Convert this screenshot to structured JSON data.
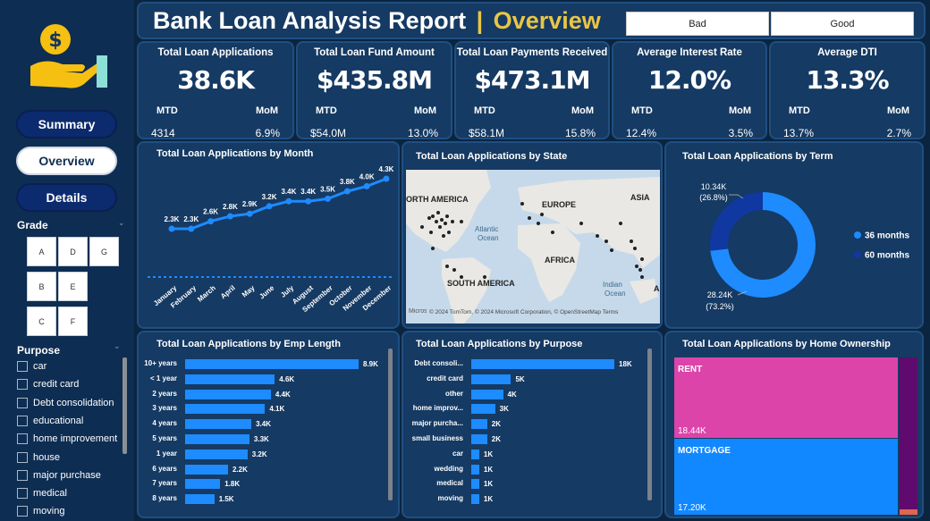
{
  "header": {
    "title_main": "Bank Loan Analysis Report",
    "title_sep": "|",
    "title_page": "Overview"
  },
  "filters": {
    "bad_label": "Bad",
    "good_label": "Good"
  },
  "nav": {
    "summary": "Summary",
    "overview": "Overview",
    "details": "Details"
  },
  "grade": {
    "label": "Grade",
    "items": [
      "A",
      "D",
      "G",
      "B",
      "E",
      "C",
      "F"
    ]
  },
  "purpose_filter": {
    "label": "Purpose",
    "items": [
      "car",
      "credit card",
      "Debt consolidation",
      "educational",
      "home improvement",
      "house",
      "major purchase",
      "medical",
      "moving"
    ]
  },
  "kpis": [
    {
      "title": "Total Loan Applications",
      "value": "38.6K",
      "mtd_label": "MTD",
      "mom_label": "MoM",
      "mtd": "4314",
      "mom": "6.9%"
    },
    {
      "title": "Total Loan Fund Amount",
      "value": "$435.8M",
      "mtd_label": "MTD",
      "mom_label": "MoM",
      "mtd": "$54.0M",
      "mom": "13.0%"
    },
    {
      "title": "Total Loan Payments Received",
      "value": "$473.1M",
      "mtd_label": "MTD",
      "mom_label": "MoM",
      "mtd": "$58.1M",
      "mom": "15.8%"
    },
    {
      "title": "Average Interest Rate",
      "value": "12.0%",
      "mtd_label": "MTD",
      "mom_label": "MoM",
      "mtd": "12.4%",
      "mom": "3.5%"
    },
    {
      "title": "Average DTI",
      "value": "13.3%",
      "mtd_label": "MTD",
      "mom_label": "MoM",
      "mtd": "13.7%",
      "mom": "2.7%"
    }
  ],
  "map": {
    "title": "Total Loan Applications by State",
    "labels": {
      "na": "ORTH AMERICA",
      "eu": "EUROPE",
      "asia": "ASIA",
      "atl1": "Atlantic",
      "atl2": "Ocean",
      "africa": "AFRICA",
      "sa": "SOUTH AMERICA",
      "ind1": "Indian",
      "ind2": "Ocean",
      "edge": "A"
    },
    "attribution": "© 2024 TomTom, © 2024 Microsoft Corporation, © OpenStreetMap  Terms",
    "logo": "Microsoft Bing"
  },
  "colors": {
    "accent": "#1e8bff",
    "gold": "#e9c545",
    "rent": "#dd44aa",
    "mortgage": "#1188ff",
    "own": "#5e0a6e",
    "term60": "#1038a0"
  },
  "chart_data": [
    {
      "type": "line",
      "title": "Total Loan Applications by Month",
      "categories": [
        "January",
        "February",
        "March",
        "April",
        "May",
        "June",
        "July",
        "August",
        "September",
        "October",
        "November",
        "December"
      ],
      "values": [
        2.3,
        2.3,
        2.6,
        2.8,
        2.9,
        3.2,
        3.4,
        3.4,
        3.5,
        3.8,
        4.0,
        4.3
      ],
      "data_labels": [
        "2.3K",
        "2.3K",
        "2.6K",
        "2.8K",
        "2.9K",
        "3.2K",
        "3.4K",
        "3.4K",
        "3.5K",
        "3.8K",
        "4.0K",
        "4.3K"
      ],
      "color": "#1e8bff"
    },
    {
      "type": "pie",
      "title": "Total Loan Applications by Term",
      "categories": [
        "36 months",
        "60 months"
      ],
      "values": [
        28.24,
        10.34
      ],
      "labels": [
        "28.24K",
        "10.34K"
      ],
      "percents": [
        "(73.2%)",
        "(26.8%)"
      ],
      "colors": [
        "#1e8bff",
        "#1038a0"
      ],
      "legend": "right"
    },
    {
      "type": "bar",
      "title": "Total Loan Applications by Emp Length",
      "categories": [
        "10+ years",
        "< 1 year",
        "2 years",
        "3 years",
        "4 years",
        "5 years",
        "1 year",
        "6 years",
        "7 years",
        "8 years"
      ],
      "values": [
        8.9,
        4.6,
        4.4,
        4.1,
        3.4,
        3.3,
        3.2,
        2.2,
        1.8,
        1.5
      ],
      "labels": [
        "8.9K",
        "4.6K",
        "4.4K",
        "4.1K",
        "3.4K",
        "3.3K",
        "3.2K",
        "2.2K",
        "1.8K",
        "1.5K"
      ]
    },
    {
      "type": "bar",
      "title": "Total Loan Applications by Purpose",
      "categories": [
        "Debt consoli...",
        "credit card",
        "other",
        "home improv...",
        "major purcha...",
        "small business",
        "car",
        "wedding",
        "medical",
        "moving"
      ],
      "values": [
        18,
        5,
        4,
        3,
        2,
        2,
        1,
        1,
        1,
        1
      ],
      "labels": [
        "18K",
        "5K",
        "4K",
        "3K",
        "2K",
        "2K",
        "1K",
        "1K",
        "1K",
        "1K"
      ]
    },
    {
      "type": "heatmap",
      "title": "Total Loan Applications by Home Ownership",
      "categories": [
        "RENT",
        "MORTGAGE"
      ],
      "values": [
        18.44,
        17.2
      ],
      "labels": [
        "18.44K",
        "17.20K"
      ]
    }
  ]
}
